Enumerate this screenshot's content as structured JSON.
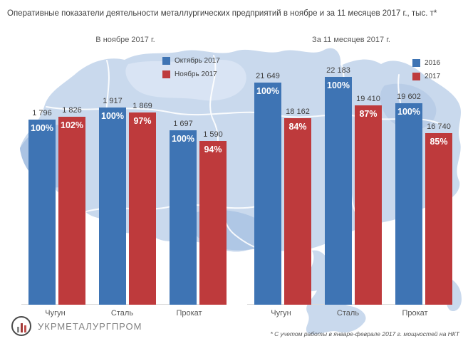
{
  "title": "Оперативные показатели деятельности металлургических предприятий в ноябре и за 11 месяцев 2017 г., тыс. т*",
  "footnote": "* С учетом работы в январе-феврале 2017 г. мощностей на НКТ",
  "logo": {
    "name": "УКРМЕТАЛУРГПРОМ"
  },
  "colors": {
    "series_primary": "#3E74B4",
    "series_comparison": "#BE3A3C",
    "map_fill": "#C9D9ED",
    "map_fill_dark": "#AAC3E3",
    "map_fill_light": "#D9E4F4",
    "axis_line": "#D9D9D9"
  },
  "chart_data": [
    {
      "type": "bar",
      "title": "В ноябре 2017 г.",
      "categories": [
        "Чугун",
        "Сталь",
        "Прокат"
      ],
      "series": [
        {
          "name": "Октябрь 2017",
          "color": "#3E74B4",
          "values": [
            1796,
            1917,
            1697
          ],
          "value_labels": [
            "1 796",
            "1 917",
            "1 697"
          ],
          "percent_labels": [
            "100%",
            "100%",
            "100%"
          ]
        },
        {
          "name": "Ноябрь 2017",
          "color": "#BE3A3C",
          "values": [
            1826,
            1869,
            1590
          ],
          "value_labels": [
            "1 826",
            "1 869",
            "1 590"
          ],
          "percent_labels": [
            "102%",
            "97%",
            "94%"
          ]
        }
      ],
      "unit": "тыс. т",
      "legend_position": "top-right",
      "ylim": [
        0,
        1917
      ],
      "grid": false
    },
    {
      "type": "bar",
      "title": "За 11 месяцев 2017 г.",
      "categories": [
        "Чугун",
        "Сталь",
        "Прокат"
      ],
      "series": [
        {
          "name": "2016",
          "color": "#3E74B4",
          "values": [
            21649,
            22183,
            19602
          ],
          "value_labels": [
            "21 649",
            "22 183",
            "19 602"
          ],
          "percent_labels": [
            "100%",
            "100%",
            "100%"
          ]
        },
        {
          "name": "2017",
          "color": "#BE3A3C",
          "values": [
            18162,
            19410,
            16740
          ],
          "value_labels": [
            "18 162",
            "19 410",
            "16 740"
          ],
          "percent_labels": [
            "84%",
            "87%",
            "85%"
          ]
        }
      ],
      "unit": "тыс. т",
      "legend_position": "top-right",
      "ylim": [
        0,
        22183
      ],
      "grid": false
    }
  ]
}
